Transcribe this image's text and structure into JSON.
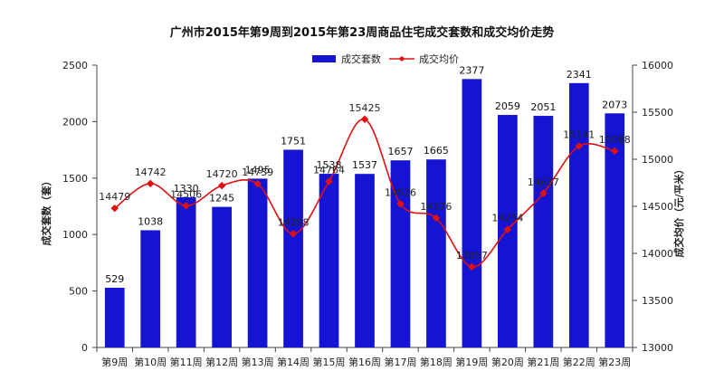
{
  "chart_data": {
    "type": "bar",
    "title": "广州市2015年第9周到2015年第23周商品住宅成交套数和成交均价走势",
    "categories": [
      "第9周",
      "第10周",
      "第11周",
      "第12周",
      "第13周",
      "第14周",
      "第15周",
      "第16周",
      "第17周",
      "第18周",
      "第19周",
      "第20周",
      "第21周",
      "第22周",
      "第23周"
    ],
    "series": [
      {
        "name": "成交套数",
        "type": "bar",
        "axis": "left",
        "color": "#1414d2",
        "values": [
          529,
          1038,
          1330,
          1245,
          1495,
          1751,
          1538,
          1537,
          1657,
          1665,
          2377,
          2059,
          2051,
          2341,
          2073
        ]
      },
      {
        "name": "成交均价",
        "type": "line",
        "axis": "right",
        "color": "#e01010",
        "values": [
          14479,
          14742,
          14506,
          14720,
          14739,
          14208,
          14764,
          15425,
          14526,
          14376,
          13857,
          14254,
          14637,
          15141,
          15088
        ]
      }
    ],
    "ylabel_left": "成交套数（套）",
    "ylabel_right": "成交均价（元/平米）",
    "ylim_left": [
      0,
      2500
    ],
    "ylim_right": [
      13000,
      16000
    ],
    "yticks_left": [
      0,
      500,
      1000,
      1500,
      2000,
      2500
    ],
    "yticks_right": [
      13000,
      13500,
      14000,
      14500,
      15000,
      15500,
      16000
    ],
    "legend_position": "top-center",
    "grid": false
  }
}
